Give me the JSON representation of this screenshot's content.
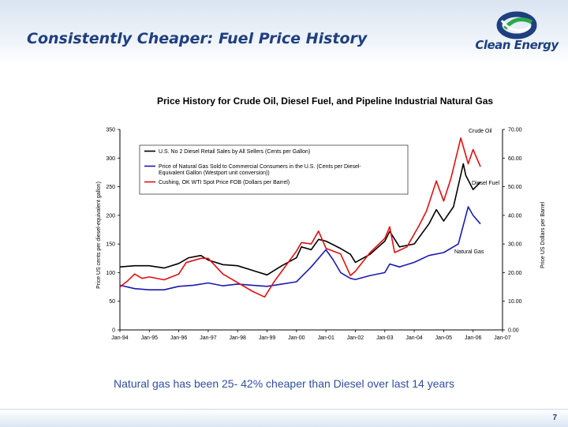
{
  "header": {
    "title": "Consistently Cheaper: Fuel Price History",
    "logo_text": "Clean Energy"
  },
  "caption": "Natural gas has been 25- 42% cheaper than Diesel over last 14 years",
  "footer": {
    "page_number": "7"
  },
  "colors": {
    "title": "#1f3f7f",
    "caption": "#2f4f9f",
    "diesel": "#000000",
    "natural_gas": "#1a1ab0",
    "crude_oil": "#e01010",
    "logo_blue": "#1f3f7f",
    "logo_green": "#2aa84a"
  },
  "chart_data": {
    "type": "line",
    "title": "Price History for Crude Oil, Diesel Fuel, and Pipeline Industrial Natural Gas",
    "ylabel": "Price US cents per diesel-equivalent gallon)",
    "ylabel_right": "Price US Dollars per Barrel",
    "ylim": [
      0,
      350
    ],
    "ylim_right": [
      0,
      70
    ],
    "yticks": [
      "0",
      "50",
      "100",
      "150",
      "200",
      "250",
      "300",
      "350"
    ],
    "yticks_right": [
      "0.00",
      "10.00",
      "20.00",
      "30.00",
      "40.00",
      "50.00",
      "60.00",
      "70.00"
    ],
    "xlim": [
      "Jan-94",
      "Jan-07"
    ],
    "xticks": [
      "Jan-94",
      "Jan-95",
      "Jan-96",
      "Jan-97",
      "Jan-98",
      "Jan-99",
      "Jan-00",
      "Jan-01",
      "Jan-02",
      "Jan-03",
      "Jan-04",
      "Jan-05",
      "Jan-06",
      "Jan-07"
    ],
    "grid": false,
    "legend_position": "top-left",
    "legend": [
      "U.S. No 2 Diesel Retail Sales by All Sellers (Cents per Gallon)",
      "Price of Natural Gas Sold to Commercial Consumers in the U.S. (Cents per Diesel-Equivalent Gallon (Westport unit conversion))",
      "Cushing, OK WTI Spot Price FOB (Dollars per Barrel)"
    ],
    "annotations": [
      "Crude Oil",
      "Diesel Fuel",
      "Natural Gas"
    ],
    "series": [
      {
        "name": "U.S. No 2 Diesel Retail Sales by All Sellers (Cents per Gallon)",
        "axis": "left",
        "x": [
          "1994-01",
          "1994-07",
          "1995-01",
          "1995-07",
          "1996-01",
          "1996-05",
          "1996-10",
          "1997-01",
          "1997-07",
          "1998-01",
          "1998-07",
          "1999-01",
          "1999-07",
          "2000-01",
          "2000-03",
          "2000-07",
          "2000-10",
          "2001-01",
          "2001-07",
          "2001-11",
          "2002-01",
          "2002-07",
          "2003-01",
          "2003-03",
          "2003-07",
          "2004-01",
          "2004-07",
          "2004-10",
          "2005-01",
          "2005-05",
          "2005-09",
          "2005-10",
          "2006-01",
          "2006-04"
        ],
        "values": [
          110,
          112,
          112,
          108,
          116,
          126,
          130,
          122,
          114,
          112,
          104,
          96,
          112,
          126,
          145,
          140,
          158,
          155,
          142,
          132,
          118,
          132,
          155,
          172,
          145,
          150,
          185,
          210,
          190,
          215,
          290,
          270,
          245,
          258
        ]
      },
      {
        "name": "Price of Natural Gas Sold to Commercial Consumers in the U.S. (Cents per Diesel-Equivalent Gallon (Westport unit conversion))",
        "axis": "left",
        "x": [
          "1994-01",
          "1994-07",
          "1995-01",
          "1995-07",
          "1996-01",
          "1996-07",
          "1997-01",
          "1997-07",
          "1998-01",
          "1998-07",
          "1999-01",
          "1999-07",
          "2000-01",
          "2000-07",
          "2001-01",
          "2001-04",
          "2001-07",
          "2001-11",
          "2002-01",
          "2002-07",
          "2003-01",
          "2003-03",
          "2003-07",
          "2004-01",
          "2004-07",
          "2005-01",
          "2005-07",
          "2005-11",
          "2006-01",
          "2006-04"
        ],
        "values": [
          78,
          72,
          70,
          70,
          76,
          78,
          82,
          77,
          80,
          78,
          76,
          80,
          84,
          110,
          140,
          122,
          100,
          90,
          88,
          95,
          100,
          115,
          110,
          118,
          130,
          135,
          150,
          215,
          200,
          185
        ]
      },
      {
        "name": "Cushing, OK WTI Spot Price FOB (Dollars per Barrel)",
        "axis": "right",
        "x": [
          "1994-01",
          "1994-04",
          "1994-07",
          "1994-10",
          "1995-01",
          "1995-07",
          "1996-01",
          "1996-04",
          "1996-10",
          "1997-01",
          "1997-07",
          "1998-01",
          "1998-07",
          "1998-12",
          "1999-04",
          "1999-07",
          "2000-01",
          "2000-03",
          "2000-07",
          "2000-10",
          "2001-01",
          "2001-07",
          "2001-11",
          "2002-01",
          "2002-07",
          "2003-01",
          "2003-03",
          "2003-05",
          "2003-10",
          "2004-03",
          "2004-06",
          "2004-10",
          "2005-01",
          "2005-04",
          "2005-08",
          "2005-11",
          "2006-01",
          "2006-04"
        ],
        "values": [
          15.0,
          17.0,
          19.5,
          18.0,
          18.5,
          17.5,
          19.5,
          23.5,
          25.0,
          25.0,
          19.5,
          16.5,
          13.5,
          11.5,
          17.0,
          20.5,
          27.5,
          30.5,
          30.0,
          34.5,
          28.5,
          26.5,
          19.0,
          20.5,
          27.0,
          32.0,
          36.0,
          27.0,
          29.0,
          36.5,
          41.5,
          52.0,
          45.0,
          53.0,
          67.0,
          58.0,
          63.0,
          57.0
        ]
      }
    ]
  }
}
